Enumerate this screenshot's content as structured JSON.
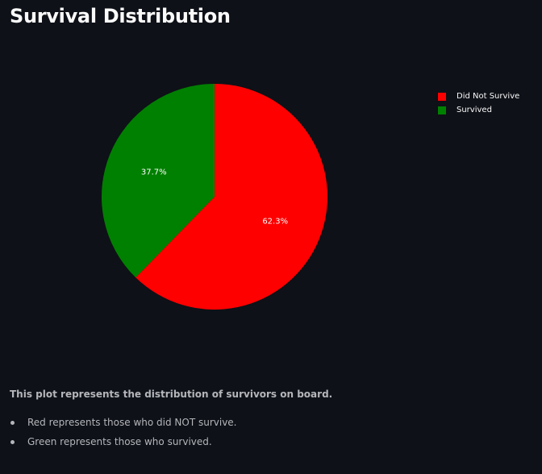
{
  "page": {
    "title": "Survival Distribution",
    "description": "This plot represents the distribution of survivors on board.",
    "bullets": [
      "Red represents those who did NOT survive.",
      "Green represents those who survived."
    ]
  },
  "chart_data": {
    "type": "pie",
    "title": "",
    "slices": [
      {
        "label": "Did Not Survive",
        "value": 62.3,
        "display": "62.3%",
        "color": "#ff0000"
      },
      {
        "label": "Survived",
        "value": 37.7,
        "display": "37.7%",
        "color": "#008000"
      }
    ],
    "legend_position": "top-right",
    "start_angle": "12 o'clock",
    "direction": "clockwise"
  }
}
